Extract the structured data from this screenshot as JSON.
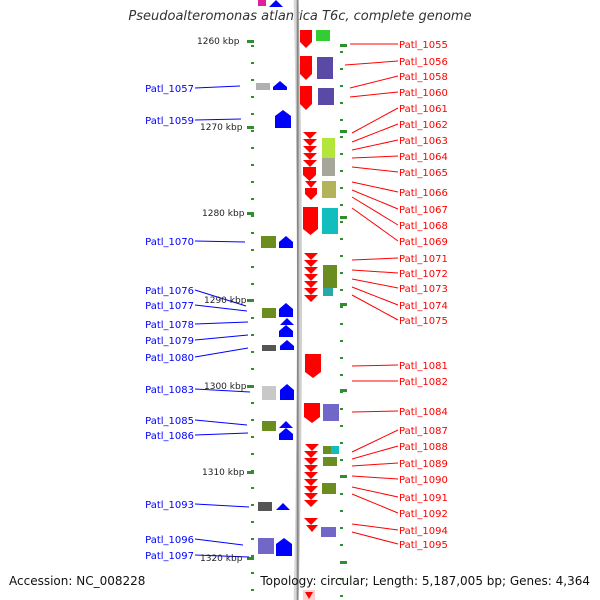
{
  "header": {
    "title": "Pseudoalteromonas atlantica T6c, complete genome"
  },
  "footer": {
    "accession": "Accession: NC_008228",
    "topology": "Topology: circular; Length: 5,187,005 bp; Genes: 4,364"
  },
  "colors": {
    "forward": "#ff0000",
    "reverse": "#0000ff"
  },
  "scale_labels": [
    "1260 kbp",
    "1270 kbp",
    "1280 kbp",
    "1290 kbp",
    "1300 kbp",
    "1310 kbp",
    "1320 kbp"
  ],
  "left_genes": [
    "Patl_1057",
    "Patl_1059",
    "Patl_1070",
    "Patl_1076",
    "Patl_1077",
    "Patl_1078",
    "Patl_1079",
    "Patl_1080",
    "Patl_1083",
    "Patl_1085",
    "Patl_1086",
    "Patl_1093",
    "Patl_1096",
    "Patl_1097"
  ],
  "right_genes": [
    "Patl_1055",
    "Patl_1056",
    "Patl_1058",
    "Patl_1060",
    "Patl_1061",
    "Patl_1062",
    "Patl_1063",
    "Patl_1064",
    "Patl_1065",
    "Patl_1066",
    "Patl_1067",
    "Patl_1068",
    "Patl_1069",
    "Patl_1071",
    "Patl_1072",
    "Patl_1073",
    "Patl_1074",
    "Patl_1075",
    "Patl_1081",
    "Patl_1082",
    "Patl_1084",
    "Patl_1087",
    "Patl_1088",
    "Patl_1089",
    "Patl_1090",
    "Patl_1091",
    "Patl_1092",
    "Patl_1094",
    "Patl_1095"
  ]
}
